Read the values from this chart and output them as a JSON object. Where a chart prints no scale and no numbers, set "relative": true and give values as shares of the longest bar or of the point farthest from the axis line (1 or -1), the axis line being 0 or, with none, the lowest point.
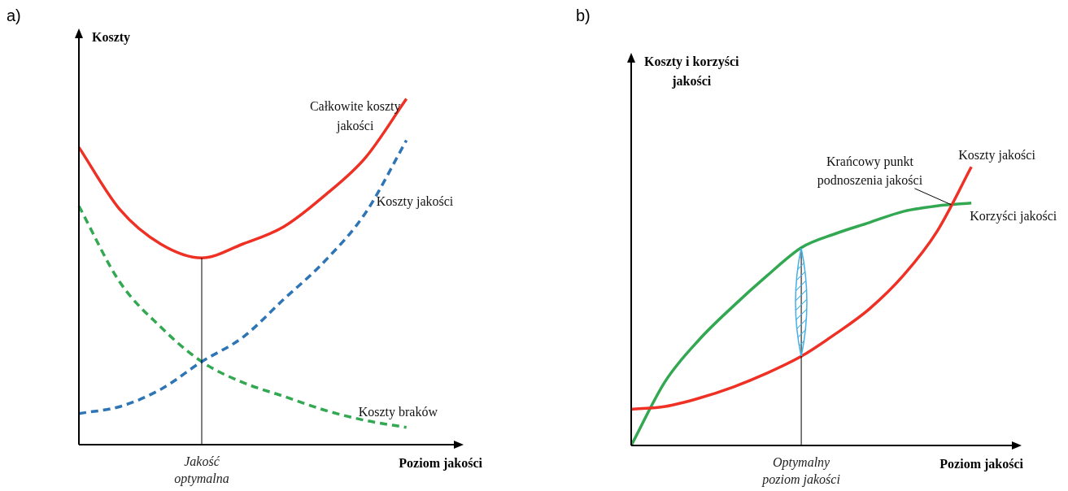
{
  "chart_data": [
    {
      "type": "line",
      "title": "a)",
      "ylabel": "Koszty",
      "xlabel": "Poziom jakości",
      "relative": true,
      "legend": false,
      "grid": false,
      "marker": "none",
      "categories": [
        null,
        null,
        null,
        null,
        null,
        null,
        null,
        null,
        null,
        null
      ],
      "series": [
        {
          "name": "Całkowite koszty jakości",
          "color": "#ee3124",
          "line_style": "solid",
          "values": [
            0.86,
            0.68,
            0.58,
            0.54,
            0.58,
            0.63,
            0.72,
            0.83,
            1.0,
            null
          ]
        },
        {
          "name": "Koszty jakości",
          "color": "#2e75b6",
          "line_style": "dashed",
          "values": [
            0.09,
            0.11,
            0.16,
            0.24,
            0.31,
            0.42,
            0.53,
            0.67,
            0.88,
            null
          ]
        },
        {
          "name": "Koszty braków",
          "color": "#33a852",
          "line_style": "dashed",
          "values": [
            0.69,
            0.47,
            0.34,
            0.24,
            0.18,
            0.14,
            0.1,
            0.07,
            0.05,
            null
          ]
        }
      ],
      "annotations": [
        "Jakość optymalna"
      ]
    },
    {
      "type": "line",
      "title": "b)",
      "ylabel": "Koszty i korzyści jakości",
      "xlabel": "Poziom jakości",
      "relative": true,
      "legend": false,
      "grid": false,
      "marker": "none",
      "categories": [
        null,
        null,
        null,
        null,
        null,
        null,
        null,
        null,
        null,
        null,
        null,
        null
      ],
      "series": [
        {
          "name": "Koszty jakości",
          "color": "#ee3124",
          "line_style": "solid",
          "values": [
            0.13,
            0.14,
            0.17,
            0.21,
            0.26,
            0.32,
            0.4,
            0.49,
            0.61,
            0.77,
            1.0,
            null
          ]
        },
        {
          "name": "Korzyści jakości",
          "color": "#33a852",
          "line_style": "solid",
          "values": [
            0,
            0.23,
            0.38,
            0.5,
            0.61,
            0.71,
            0.76,
            0.8,
            0.84,
            0.86,
            0.87,
            null
          ]
        }
      ],
      "annotations": [
        "Krańcowy punkt podnoszenia jakości",
        "Optymalny poziom jakości"
      ]
    }
  ]
}
